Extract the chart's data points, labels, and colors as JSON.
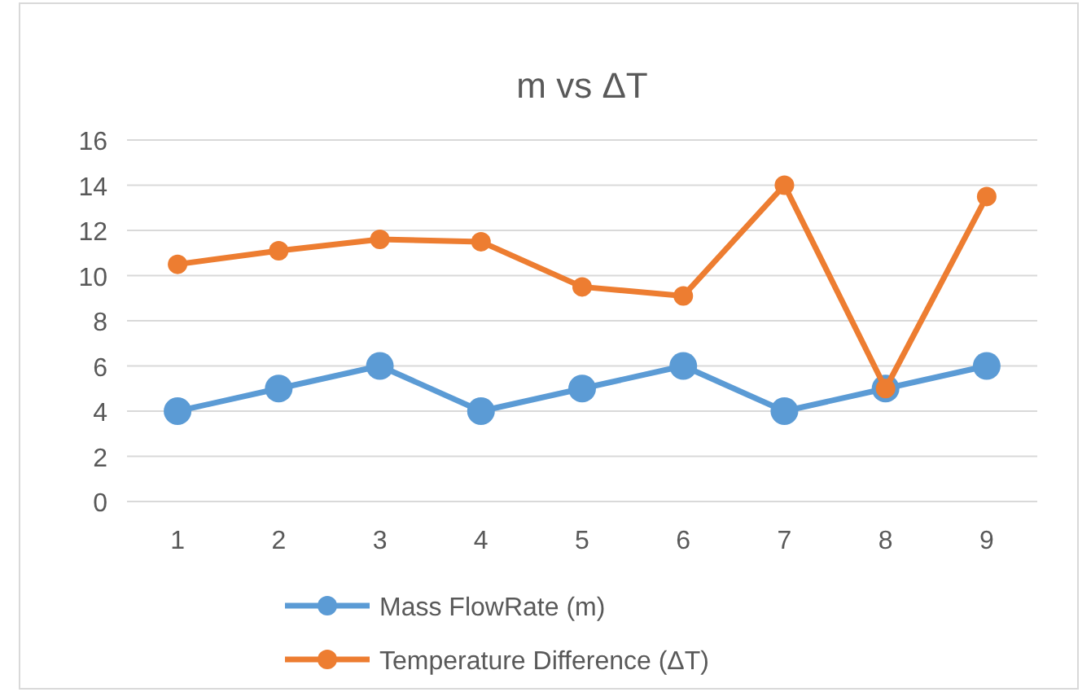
{
  "chart_data": {
    "type": "line",
    "title": "m vs ΔT",
    "categories": [
      "1",
      "2",
      "3",
      "4",
      "5",
      "6",
      "7",
      "8",
      "9"
    ],
    "series": [
      {
        "name": "Mass FlowRate (m)",
        "color": "#5b9bd5",
        "values": [
          4,
          5,
          6,
          4,
          5,
          6,
          4,
          5,
          6
        ]
      },
      {
        "name": "Temperature Difference (ΔT)",
        "color": "#ed7d31",
        "values": [
          10.5,
          11.1,
          11.6,
          11.5,
          9.5,
          9.1,
          14,
          5,
          13.5
        ]
      }
    ],
    "ylim": [
      0,
      16
    ],
    "yticks": [
      0,
      2,
      4,
      6,
      8,
      10,
      12,
      14,
      16
    ],
    "grid": "y",
    "legend": "bottom",
    "marker": "circle",
    "line_style": "solid"
  }
}
